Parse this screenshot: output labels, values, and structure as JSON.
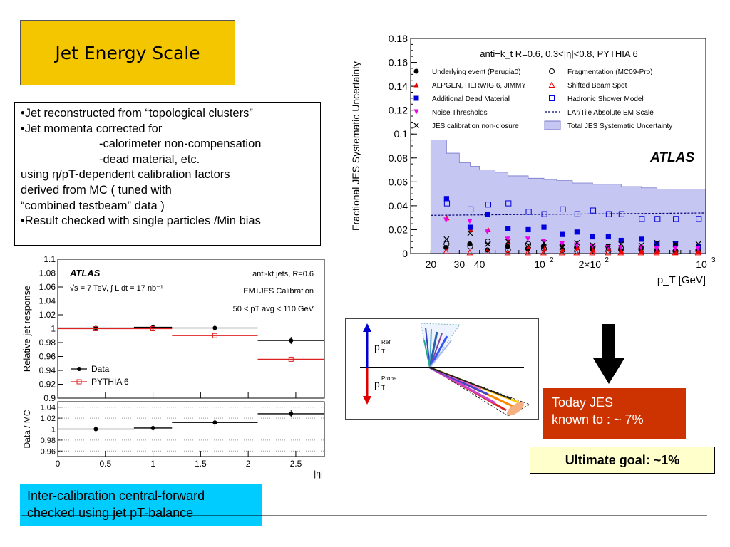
{
  "slide": {
    "title": "Jet Energy Scale",
    "bullets": [
      {
        "text": "•Jet reconstructed from “topological clusters”",
        "indent": false
      },
      {
        "text": "•Jet momenta corrected for",
        "indent": false
      },
      {
        "text": "-calorimeter non-compensation",
        "indent": true
      },
      {
        "text": "-dead material, etc.",
        "indent": true
      },
      {
        "text": " using η/pT-dependent calibration factors",
        "indent": false
      },
      {
        "text": "derived from MC ( tuned with",
        "indent": false
      },
      {
        "text": " “combined testbeam” data )",
        "indent": false
      },
      {
        "text": "•Result checked with single particles /Min bias",
        "indent": false
      }
    ],
    "intercal_text_1": "Inter-calibration central-forward",
    "intercal_text_2": "checked using jet pT-balance",
    "today_line1": "Today JES",
    "today_line2": "known to : ~ 7%",
    "goal": "Ultimate goal: ~1%",
    "colors": {
      "title_bg": "#f4c600",
      "intercal_bg": "#00ccff",
      "today_bg": "#cc3300",
      "goal_bg": "#ffffcc",
      "band": "#c6c6f2"
    }
  },
  "diagram": {
    "ref_label": "p",
    "ref_sup": "Ref",
    "ref_sub": "T",
    "probe_label": "p",
    "probe_sup": "Probe",
    "probe_sub": "T"
  },
  "chart_data": [
    {
      "type": "scatter",
      "ylabel": "Fractional JES Systematic Uncertainty",
      "xlabel": "p_T [GeV]",
      "xscale": "log",
      "xlim": [
        15,
        1000
      ],
      "ylim": [
        0,
        0.18
      ],
      "xticks": [
        "20",
        "30",
        "40",
        "10^2",
        "2×10^2",
        "10^3"
      ],
      "yticks": [
        "0",
        "0.02",
        "0.04",
        "0.06",
        "0.08",
        "0.1",
        "0.12",
        "0.14",
        "0.16",
        "0.18"
      ],
      "header": "anti−k_t R=0.6, 0.3<|η|<0.8, PYTHIA 6",
      "atlas_label": "ATLAS",
      "legend": [
        "Underlying event (Perugia0)",
        "Fragmentation (MC09-Pro)",
        "ALPGEN, HERWIG 6, JIMMY",
        "Shifted Beam Spot",
        "Additional Dead Material",
        "Hadronic Shower Model",
        "Noise Thresholds",
        "LAr/Tile Absolute EM Scale",
        "JES calibration non-closure",
        "Total JES Systematic Uncertainty"
      ],
      "band_edges": [
        20,
        25,
        30,
        35,
        40,
        50,
        60,
        80,
        100,
        120,
        150,
        200,
        250,
        300,
        400,
        500,
        600,
        1000
      ],
      "band_values": [
        0.095,
        0.084,
        0.076,
        0.073,
        0.07,
        0.068,
        0.065,
        0.063,
        0.062,
        0.061,
        0.059,
        0.058,
        0.058,
        0.056,
        0.055,
        0.054,
        0.054
      ],
      "em_scale": [
        [
          20,
          0.032
        ],
        [
          1000,
          0.034
        ]
      ],
      "series": [
        {
          "name": "Underlying event (Perugia0)",
          "marker": "dot",
          "color": "#000000",
          "x": [
            25,
            35,
            45,
            60,
            80,
            100,
            130,
            160,
            200,
            250,
            300,
            400,
            500,
            650,
            900
          ],
          "y": [
            0.005,
            0.008,
            0.003,
            0.006,
            0.004,
            0.006,
            0.007,
            0.005,
            0.004,
            0.006,
            0.003,
            0.004,
            0.003,
            0.002,
            0.003
          ]
        },
        {
          "name": "Fragmentation (MC09-Pro)",
          "marker": "circle",
          "color": "#000000",
          "x": [
            25,
            35,
            45,
            60,
            80,
            100,
            130,
            160,
            200,
            250,
            300,
            400,
            500,
            650,
            900
          ],
          "y": [
            0.008,
            0.006,
            0.01,
            0.003,
            0.008,
            0.004,
            0.003,
            0.002,
            0.006,
            0.002,
            0.004,
            0.003,
            0.002,
            0.002,
            0.002
          ]
        },
        {
          "name": "ALPGEN, HERWIG 6, JIMMY",
          "marker": "triangle",
          "color": "#ee0000",
          "x": [
            25,
            35,
            45,
            60,
            80,
            100,
            130,
            160,
            200,
            250,
            300,
            400,
            500,
            650,
            900
          ],
          "y": [
            0.03,
            0.02,
            0.02,
            0.01,
            0.006,
            0.004,
            0.004,
            0.005,
            0.003,
            0.004,
            0.002,
            0.002,
            0.002,
            0.001,
            0.002
          ]
        },
        {
          "name": "Shifted Beam Spot",
          "marker": "triangle-open",
          "color": "#ee0000",
          "x": [
            25,
            35,
            45,
            60,
            80,
            100,
            130,
            160,
            200,
            250,
            300,
            400,
            500,
            650,
            900
          ],
          "y": [
            0.002,
            0.001,
            0.002,
            0.001,
            0.001,
            0.001,
            0.001,
            0.001,
            0.001,
            0.001,
            0.001,
            0.001,
            0.001,
            0.001,
            0.001
          ]
        },
        {
          "name": "Additional Dead Material",
          "marker": "square",
          "color": "#0000dd",
          "x": [
            25,
            35,
            45,
            60,
            80,
            100,
            130,
            160,
            200,
            250,
            300,
            400,
            500,
            650,
            900
          ],
          "y": [
            0.046,
            0.022,
            0.033,
            0.021,
            0.02,
            0.022,
            0.016,
            0.018,
            0.014,
            0.014,
            0.011,
            0.012,
            0.008,
            0.008,
            0.006
          ]
        },
        {
          "name": "Hadronic Shower Model",
          "marker": "square-open",
          "color": "#0000dd",
          "x": [
            25,
            35,
            45,
            60,
            80,
            100,
            130,
            160,
            200,
            250,
            300,
            400,
            500,
            650,
            900
          ],
          "y": [
            0.042,
            0.037,
            0.041,
            0.042,
            0.035,
            0.033,
            0.037,
            0.033,
            0.036,
            0.033,
            0.033,
            0.029,
            0.029,
            0.029,
            0.029
          ]
        },
        {
          "name": "Noise Thresholds",
          "marker": "triangle-down",
          "color": "#ee00ee",
          "x": [
            25,
            35,
            45,
            60,
            80,
            100,
            130,
            160,
            200,
            250,
            300,
            400,
            500,
            650,
            900
          ],
          "y": [
            0.028,
            0.027,
            0.018,
            0.012,
            0.012,
            0.01,
            0.008,
            0.007,
            0.006,
            0.005,
            0.005,
            0.005,
            0.004,
            0.004,
            0.004
          ]
        },
        {
          "name": "JES calibration non-closure",
          "marker": "cross",
          "color": "#000000",
          "x": [
            25,
            35,
            45,
            60,
            80,
            100,
            130,
            160,
            200,
            250,
            300,
            400,
            500,
            650,
            900
          ],
          "y": [
            0.012,
            0.017,
            0.008,
            0.01,
            0.007,
            0.009,
            0.005,
            0.009,
            0.007,
            0.006,
            0.008,
            0.007,
            0.009,
            0.008,
            0.008
          ]
        }
      ]
    },
    {
      "type": "scatter",
      "ylabel": "Relative jet response",
      "xlabel": "|η|",
      "xlim": [
        0,
        2.8
      ],
      "ylim": [
        0.9,
        1.1
      ],
      "yticks": [
        "0.9",
        "0.92",
        "0.94",
        "0.96",
        "0.98",
        "1",
        "1.02",
        "1.04",
        "1.06",
        "1.08",
        "1.1"
      ],
      "atlas_label": "ATLAS",
      "energy_text": "√s = 7 TeV, ∫ L dt = 17 nb⁻¹",
      "jet_text": "anti-kt jets, R=0.6",
      "calib_text": "EM+JES Calibration",
      "pt_text": "50 < pT avg < 110 GeV",
      "series": [
        {
          "name": "Data",
          "marker": "dot",
          "color": "#000000",
          "x": [
            0.4,
            1.0,
            1.65,
            2.45
          ],
          "xerr": [
            0.4,
            0.2,
            0.45,
            0.35
          ],
          "y": [
            1.001,
            1.002,
            1.001,
            0.983
          ]
        },
        {
          "name": "PYTHIA 6",
          "marker": "square-open",
          "color": "#dd2222",
          "x": [
            0.4,
            1.0,
            1.65,
            2.45
          ],
          "xerr": [
            0.4,
            0.2,
            0.45,
            0.35
          ],
          "y": [
            1.0,
            1.0,
            0.99,
            0.956
          ]
        }
      ]
    },
    {
      "type": "scatter",
      "ylabel": "Data / MC",
      "xlabel": "|η|",
      "xlim": [
        0,
        2.8
      ],
      "ylim": [
        0.95,
        1.05
      ],
      "xticks": [
        "0",
        "0.5",
        "1",
        "1.5",
        "2",
        "2.5"
      ],
      "yticks": [
        "0.96",
        "0.98",
        "1",
        "1.02",
        "1.04"
      ],
      "series": [
        {
          "name": "Data/MC",
          "marker": "dot",
          "color": "#000000",
          "x": [
            0.4,
            1.0,
            1.65,
            2.45
          ],
          "xerr": [
            0.4,
            0.2,
            0.45,
            0.35
          ],
          "y": [
            1.0,
            1.002,
            1.012,
            1.028
          ]
        }
      ]
    }
  ]
}
